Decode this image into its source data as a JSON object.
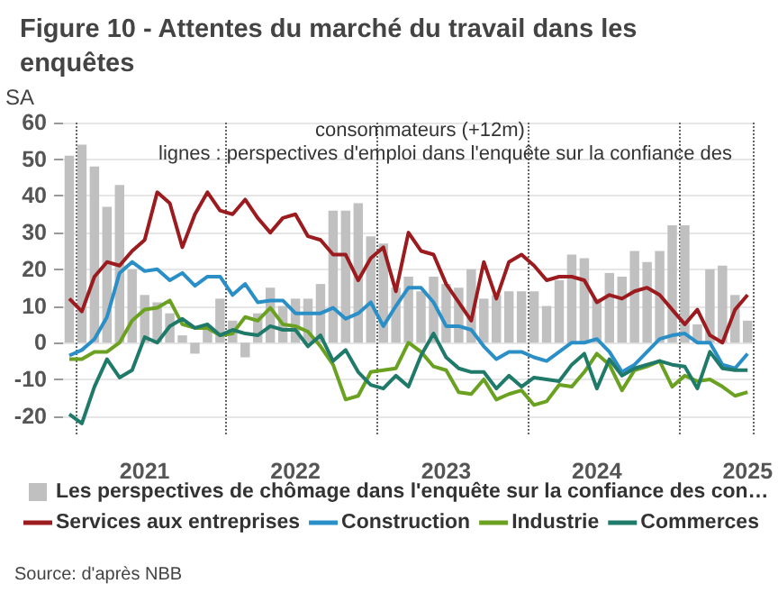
{
  "chart_data": {
    "type": "bar",
    "title": "Figure 10 - Attentes du marché du travail dans les enquêtes",
    "ylabel": "SA",
    "annotations": [
      "consommateurs (+12m)",
      "lignes : perspectives d'emploi dans l'enquête sur la confiance des",
      "Source: d'après NBB"
    ],
    "categories": [
      null,
      null,
      null,
      null,
      null,
      null,
      "2021",
      null,
      null,
      null,
      null,
      null,
      null,
      null,
      null,
      null,
      null,
      null,
      "2022",
      null,
      null,
      null,
      null,
      null,
      null,
      null,
      null,
      null,
      null,
      null,
      "2023",
      null,
      null,
      null,
      null,
      null,
      null,
      null,
      null,
      null,
      null,
      null,
      "2024",
      null,
      null,
      null,
      null,
      null,
      null,
      null,
      null,
      null,
      null,
      null,
      "2025"
    ],
    "series": [
      {
        "name": "Les perspectives de chômage dans l'enquête sur la confiance des con…",
        "color": "#c0c0c0",
        "values": [
          51,
          54,
          48,
          37,
          43,
          20,
          13,
          11,
          8,
          2,
          -3,
          4,
          12,
          6,
          -4,
          8,
          15,
          10,
          12,
          12,
          16,
          36,
          36,
          38,
          29,
          27,
          15,
          18,
          14,
          18,
          16,
          15,
          20,
          12,
          13,
          14,
          14,
          14,
          10,
          17,
          24,
          23,
          12,
          19,
          18,
          25,
          22,
          25,
          32,
          32,
          5,
          20,
          21,
          13,
          6
        ]
      },
      {
        "name": "Services aux entreprises",
        "type": "line",
        "color": "#9b1b1f",
        "values": [
          12,
          8.5,
          18,
          22,
          21,
          25,
          28,
          41,
          38,
          26,
          35,
          41,
          36,
          35,
          39,
          34,
          30,
          34,
          35,
          29,
          28,
          24,
          24,
          17,
          23,
          26,
          14,
          30,
          25,
          24,
          16,
          11,
          6,
          22,
          12,
          22,
          24,
          21,
          17,
          18,
          18,
          17,
          11,
          13,
          12,
          14,
          15,
          13,
          9,
          5,
          9,
          2,
          0,
          9,
          13
        ]
      },
      {
        "name": "Construction",
        "type": "line",
        "color": "#2b8fc7",
        "values": [
          -3.5,
          -2,
          1,
          7,
          19,
          22,
          19.5,
          20,
          17,
          19,
          15.5,
          18,
          18,
          13,
          16,
          11,
          11.5,
          11.5,
          8,
          8,
          8,
          9.5,
          6.5,
          8,
          11,
          4.5,
          10,
          15,
          15,
          11,
          4.5,
          4.5,
          3.5,
          -1,
          -4.5,
          -2.5,
          -2.5,
          -4,
          -5,
          -2.5,
          0,
          0,
          1,
          -2.5,
          -8,
          -6,
          -2.5,
          1,
          2,
          2.5,
          0,
          0,
          -6,
          -7,
          -3
        ]
      },
      {
        "name": "Industrie",
        "type": "line",
        "color": "#6aa121",
        "values": [
          -4.5,
          -4.5,
          -2.5,
          -2.5,
          0,
          6,
          9,
          9.5,
          11.5,
          5,
          4,
          4,
          2,
          2.5,
          7,
          6,
          9.5,
          5,
          4.5,
          3,
          -1,
          -6,
          -15.5,
          -14.5,
          -8,
          -7.5,
          -7,
          0,
          -2.5,
          -6.5,
          -7.5,
          -13.5,
          -14,
          -10,
          -15.5,
          -14,
          -13,
          -17,
          -16,
          -11.5,
          -12,
          -8,
          -3,
          -6,
          -13,
          -7.5,
          -6.5,
          -5,
          -12,
          -9,
          -10.5,
          -10,
          -12,
          -14.5,
          -13.5
        ]
      },
      {
        "name": "Commerces",
        "type": "line",
        "color": "#1f7a6a",
        "values": [
          -19.5,
          -22,
          -12,
          -4.5,
          -9.5,
          -7.5,
          1.5,
          0,
          4.5,
          6.5,
          4,
          5,
          2,
          3.5,
          2.5,
          2,
          4.5,
          3.5,
          3.5,
          -1,
          2,
          -5,
          -2,
          -8,
          -11.5,
          -12.5,
          -9,
          -12,
          -3.5,
          2.5,
          -4,
          -7,
          -8,
          -8,
          -12.5,
          -9,
          -12,
          -9.5,
          -10,
          -10.5,
          -6,
          -3,
          -12.5,
          -4.5,
          -9,
          -7,
          -6,
          -5,
          -6,
          -6.5,
          -12.5,
          -2.5,
          -7,
          -7.5,
          -7.5
        ]
      }
    ],
    "ylim": [
      -25,
      60
    ],
    "yticks": [
      -20,
      -10,
      0,
      10,
      20,
      30,
      40,
      50,
      60
    ],
    "grid": true,
    "legend": "bottom",
    "marker": "none"
  }
}
